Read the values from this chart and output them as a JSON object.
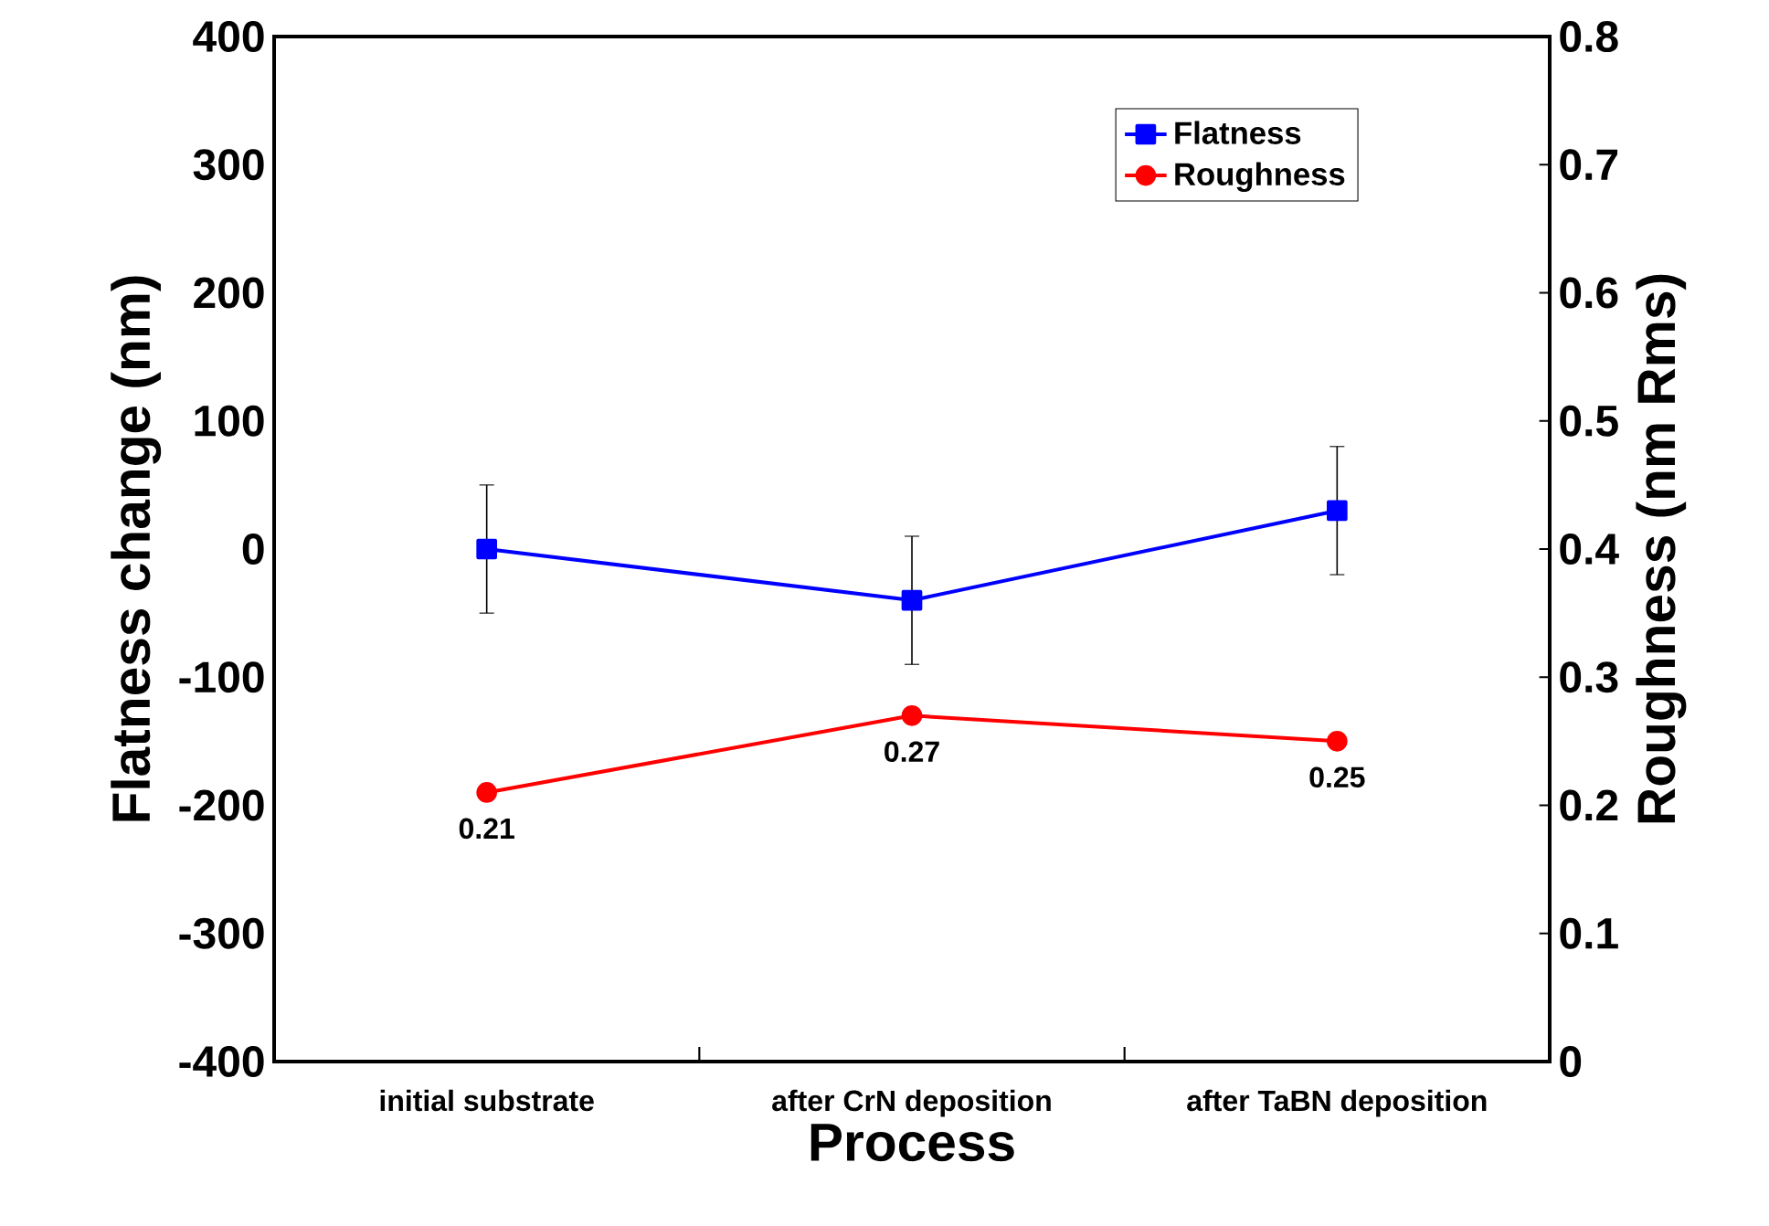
{
  "chart_data": {
    "type": "line",
    "xlabel": "Process",
    "ylabel": "Flatness change (nm)",
    "y2label": "Roughness (nm Rms)",
    "categories": [
      "initial substrate",
      "after CrN deposition",
      "after TaBN deposition"
    ],
    "series": [
      {
        "name": "Flatness",
        "color": "#0000ff",
        "values": [
          0,
          -40,
          30
        ],
        "errors": [
          50,
          50,
          50
        ],
        "marker": "square"
      },
      {
        "name": "Roughness",
        "color": "#ff0000",
        "values": [
          0.21,
          0.27,
          0.25
        ],
        "axis": "y2",
        "marker": "circle",
        "value_labels": [
          "0.21",
          "0.27",
          "0.25"
        ]
      }
    ],
    "ylim": [
      -400,
      400
    ],
    "yticks": [
      -400,
      -300,
      -200,
      -100,
      0,
      100,
      200,
      300,
      400
    ],
    "y2lim": [
      0,
      0.8
    ],
    "y2ticks": [
      0,
      0.1,
      0.2,
      0.3,
      0.4,
      0.5,
      0.6,
      0.7,
      0.8
    ],
    "legend": "top right",
    "grid": false
  }
}
